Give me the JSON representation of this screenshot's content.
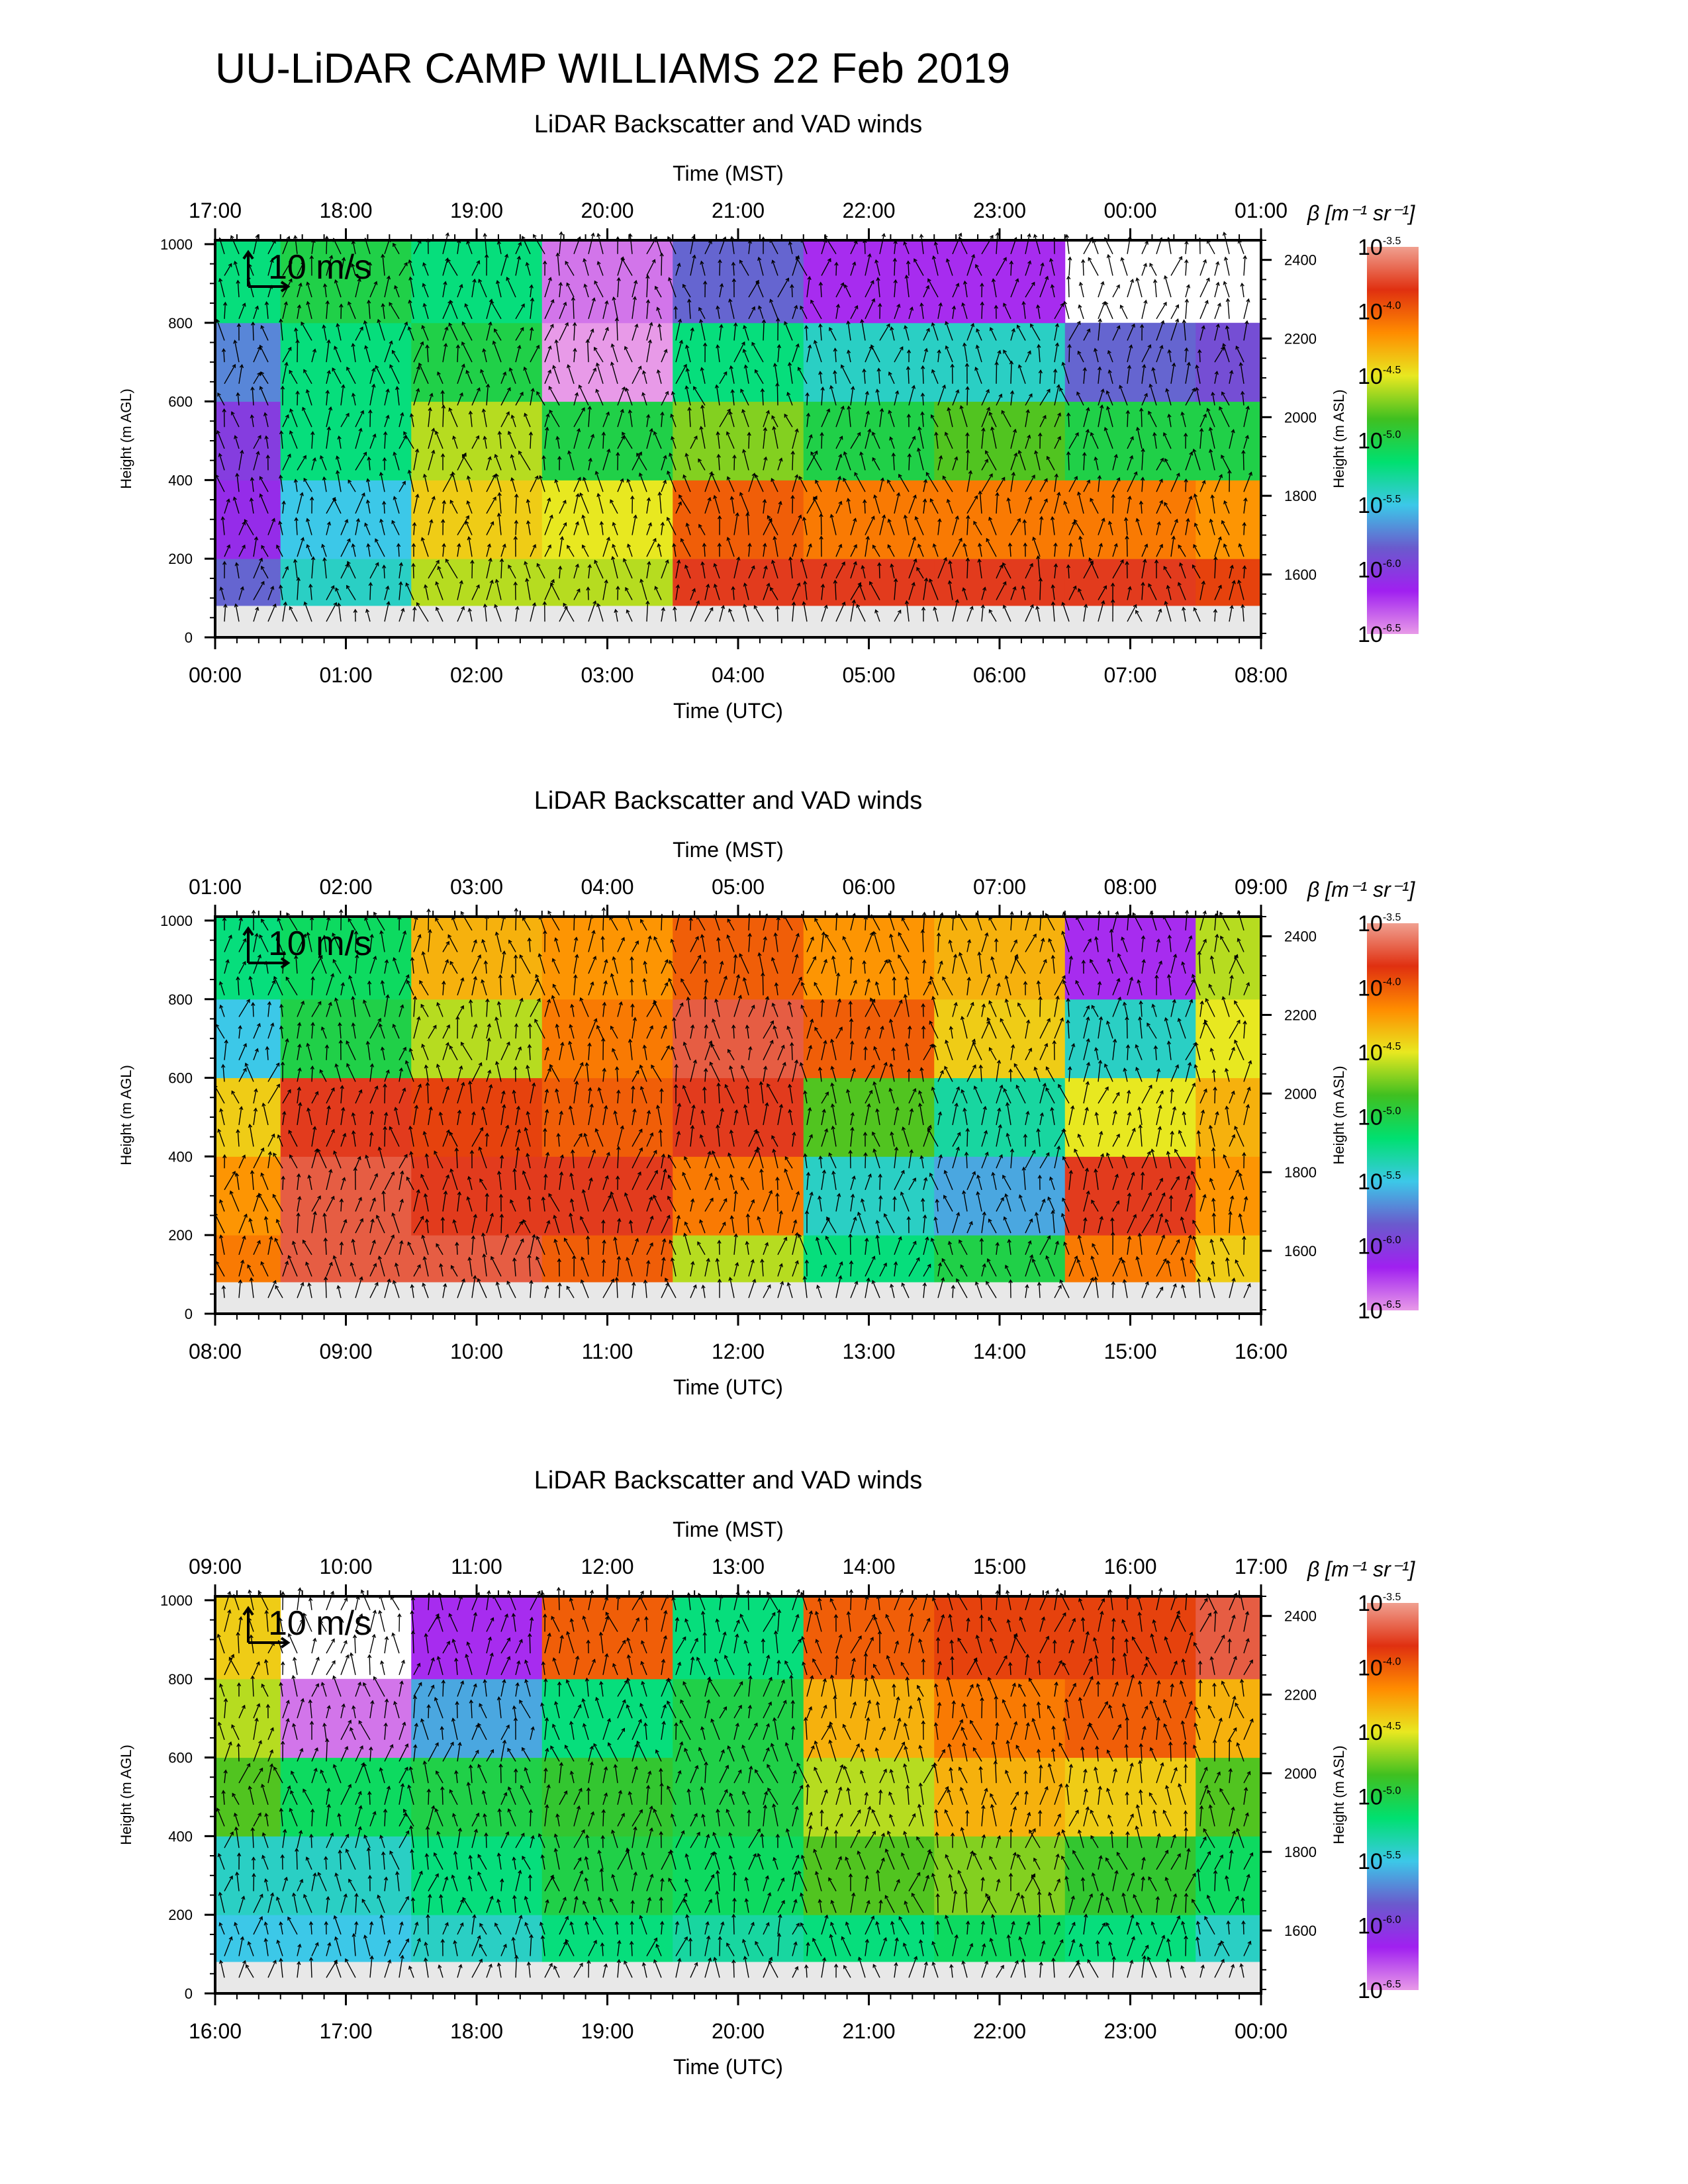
{
  "figure": {
    "title": "UU-LiDAR CAMP WILLIAMS 22 Feb 2019"
  },
  "chart_data": [
    {
      "type": "heatmap",
      "title": "LiDAR Backscatter and VAD winds",
      "xlabel_top": "Time (MST)",
      "xlabel_bottom": "Time (UTC)",
      "ylabel_left": "Height (m AGL)",
      "ylabel_right": "Height (m ASL)",
      "x_ticks_top": [
        "17:00",
        "18:00",
        "19:00",
        "20:00",
        "21:00",
        "22:00",
        "23:00",
        "00:00",
        "01:00"
      ],
      "x_ticks_bottom": [
        "00:00",
        "01:00",
        "02:00",
        "03:00",
        "04:00",
        "05:00",
        "06:00",
        "07:00",
        "08:00"
      ],
      "y_ticks_left": [
        0,
        200,
        400,
        600,
        800,
        1000
      ],
      "y_ticks_right": [
        1600,
        1800,
        2000,
        2200,
        2400
      ],
      "ylim_agl": [
        0,
        1010
      ],
      "ylim_asl": [
        1440,
        2450
      ],
      "vector_key": "10 m/s",
      "colorbar": {
        "label": "β [m⁻¹ sr⁻¹]",
        "ticks": [
          -3.5,
          -4.0,
          -4.5,
          -5.0,
          -5.5,
          -6.0,
          -6.5
        ],
        "log10_range": [
          -6.5,
          -3.5
        ]
      },
      "log10_beta_by_hour_utc": {
        "hours": [
          0,
          1,
          2,
          3,
          4,
          5,
          6,
          7,
          8
        ],
        "at_100m": [
          -5.8,
          -5.4,
          -4.6,
          -4.6,
          -3.8,
          -3.8,
          -3.8,
          -3.8,
          -3.9
        ],
        "at_300m": [
          -6.1,
          -5.5,
          -4.4,
          -4.5,
          -4.0,
          -4.1,
          -4.1,
          -4.1,
          -4.2
        ],
        "at_500m": [
          -6.0,
          -5.2,
          -4.6,
          -5.0,
          -4.7,
          -5.0,
          -4.8,
          -5.0,
          -5.0
        ],
        "at_700m": [
          -5.7,
          -5.2,
          -5.0,
          -6.6,
          -5.2,
          -5.4,
          -5.4,
          -5.8,
          -5.9
        ],
        "at_900m": [
          -5.2,
          -5.0,
          -5.2,
          -6.4,
          -5.8,
          -6.2,
          -6.2,
          null,
          null
        ]
      }
    },
    {
      "type": "heatmap",
      "title": "LiDAR Backscatter and VAD winds",
      "xlabel_top": "Time (MST)",
      "xlabel_bottom": "Time (UTC)",
      "ylabel_left": "Height (m AGL)",
      "ylabel_right": "Height (m ASL)",
      "x_ticks_top": [
        "01:00",
        "02:00",
        "03:00",
        "04:00",
        "05:00",
        "06:00",
        "07:00",
        "08:00",
        "09:00"
      ],
      "x_ticks_bottom": [
        "08:00",
        "09:00",
        "10:00",
        "11:00",
        "12:00",
        "13:00",
        "14:00",
        "15:00",
        "16:00"
      ],
      "y_ticks_left": [
        0,
        200,
        400,
        600,
        800,
        1000
      ],
      "y_ticks_right": [
        1600,
        1800,
        2000,
        2200,
        2400
      ],
      "ylim_agl": [
        0,
        1010
      ],
      "ylim_asl": [
        1440,
        2450
      ],
      "vector_key": "10 m/s",
      "colorbar": {
        "label": "β [m⁻¹ sr⁻¹]",
        "ticks": [
          -3.5,
          -4.0,
          -4.5,
          -5.0,
          -5.5,
          -6.0,
          -6.5
        ],
        "log10_range": [
          -6.5,
          -3.5
        ]
      },
      "log10_beta_by_hour_utc": {
        "hours": [
          8,
          9,
          10,
          11,
          12,
          13,
          14,
          15,
          16
        ],
        "at_100m": [
          -4.1,
          -3.7,
          -3.7,
          -4.0,
          -4.6,
          -5.2,
          -5.0,
          -4.1,
          -4.4
        ],
        "at_300m": [
          -4.2,
          -3.7,
          -3.8,
          -3.8,
          -4.1,
          -5.4,
          -5.6,
          -3.8,
          -4.2
        ],
        "at_500m": [
          -4.4,
          -3.8,
          -3.9,
          -4.0,
          -3.8,
          -4.8,
          -5.3,
          -4.5,
          -4.3
        ],
        "at_700m": [
          -5.5,
          -5.0,
          -4.6,
          -4.1,
          -3.7,
          -4.0,
          -4.4,
          -5.4,
          -4.5
        ],
        "at_900m": [
          -5.2,
          -5.1,
          -4.3,
          -4.2,
          -4.0,
          -4.2,
          -4.3,
          -6.2,
          -4.6
        ]
      }
    },
    {
      "type": "heatmap",
      "title": "LiDAR Backscatter and VAD winds",
      "xlabel_top": "Time (MST)",
      "xlabel_bottom": "Time (UTC)",
      "ylabel_left": "Height (m AGL)",
      "ylabel_right": "Height (m ASL)",
      "x_ticks_top": [
        "09:00",
        "10:00",
        "11:00",
        "12:00",
        "13:00",
        "14:00",
        "15:00",
        "16:00",
        "17:00"
      ],
      "x_ticks_bottom": [
        "16:00",
        "17:00",
        "18:00",
        "19:00",
        "20:00",
        "21:00",
        "22:00",
        "23:00",
        "00:00"
      ],
      "y_ticks_left": [
        0,
        200,
        400,
        600,
        800,
        1000
      ],
      "y_ticks_right": [
        1600,
        1800,
        2000,
        2200,
        2400
      ],
      "ylim_agl": [
        0,
        1010
      ],
      "ylim_asl": [
        1440,
        2450
      ],
      "vector_key": "10 m/s",
      "colorbar": {
        "label": "β [m⁻¹ sr⁻¹]",
        "ticks": [
          -3.5,
          -4.0,
          -4.5,
          -5.0,
          -5.5,
          -6.0,
          -6.5
        ],
        "log10_range": [
          -6.5,
          -3.5
        ]
      },
      "log10_beta_by_hour_utc": {
        "hours": [
          16,
          17,
          18,
          19,
          20,
          21,
          22,
          23,
          24
        ],
        "at_100m": [
          -5.5,
          -5.5,
          -5.4,
          -5.2,
          -5.3,
          -5.2,
          -5.1,
          -5.2,
          -5.4
        ],
        "at_300m": [
          -5.4,
          -5.4,
          -5.2,
          -5.0,
          -5.1,
          -4.8,
          -4.7,
          -4.9,
          -5.1
        ],
        "at_500m": [
          -4.8,
          -5.1,
          -5.0,
          -4.9,
          -5.0,
          -4.6,
          -4.3,
          -4.4,
          -4.8
        ],
        "at_700m": [
          -4.6,
          -6.4,
          -5.6,
          -5.2,
          -5.0,
          -4.3,
          -4.1,
          -4.0,
          -4.3
        ],
        "at_900m": [
          -4.4,
          null,
          -6.2,
          -4.0,
          -5.2,
          -4.0,
          -3.9,
          -3.9,
          -3.7
        ]
      }
    }
  ],
  "colors": {
    "colorbar_stops": [
      "#e89ae8",
      "#a020f0",
      "#6a5acd",
      "#3cc8e8",
      "#00e070",
      "#40c020",
      "#e8e820",
      "#ff8c00",
      "#e03010",
      "#f0a090"
    ],
    "wind_arrow": "#000000",
    "near_ground_mask": "#e8e8e8"
  }
}
